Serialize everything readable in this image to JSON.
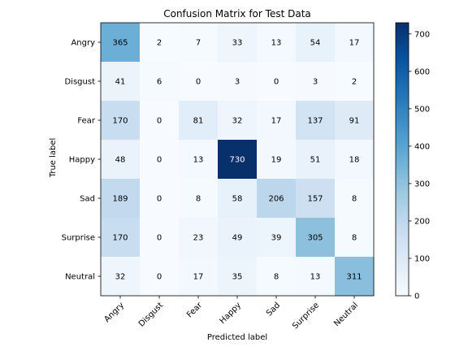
{
  "chart_data": {
    "type": "heatmap",
    "title": "Confusion Matrix for Test Data",
    "xlabel": "Predicted label",
    "ylabel": "True label",
    "x_categories": [
      "Angry",
      "Disgust",
      "Fear",
      "Happy",
      "Sad",
      "Surprise",
      "Neutral"
    ],
    "y_categories": [
      "Angry",
      "Disgust",
      "Fear",
      "Happy",
      "Sad",
      "Surprise",
      "Neutral"
    ],
    "values": [
      [
        365,
        2,
        7,
        33,
        13,
        54,
        17
      ],
      [
        41,
        6,
        0,
        3,
        0,
        3,
        2
      ],
      [
        170,
        0,
        81,
        32,
        17,
        137,
        91
      ],
      [
        48,
        0,
        13,
        730,
        19,
        51,
        18
      ],
      [
        189,
        0,
        8,
        58,
        206,
        157,
        8
      ],
      [
        170,
        0,
        23,
        49,
        39,
        305,
        8
      ],
      [
        32,
        0,
        17,
        35,
        8,
        13,
        311
      ]
    ],
    "colormap": "Blues",
    "color_range": [
      0,
      730
    ],
    "colorbar_ticks": [
      0,
      100,
      200,
      300,
      400,
      500,
      600,
      700
    ],
    "grid": false
  }
}
